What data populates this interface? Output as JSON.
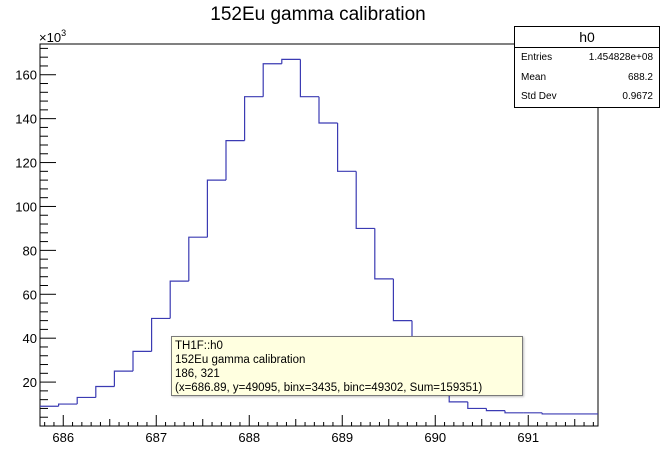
{
  "chart_data": {
    "type": "histogram",
    "title": "152Eu gamma calibration",
    "y_multiplier": "×10",
    "y_multiplier_exp": "3",
    "xlim": [
      685.75,
      691.75
    ],
    "ylim": [
      0,
      174
    ],
    "x_ticks": [
      686,
      687,
      688,
      689,
      690,
      691
    ],
    "y_ticks": [
      20,
      40,
      60,
      80,
      100,
      120,
      140,
      160
    ],
    "bin_edges": [
      685.75,
      685.95,
      686.15,
      686.35,
      686.55,
      686.75,
      686.95,
      687.15,
      687.35,
      687.55,
      687.75,
      687.95,
      688.15,
      688.35,
      688.55,
      688.75,
      688.95,
      689.15,
      689.35,
      689.55,
      689.75,
      689.95,
      690.15,
      690.35,
      690.55,
      690.75,
      690.95,
      691.15,
      691.75
    ],
    "values": [
      9,
      10,
      13,
      18,
      25,
      34,
      49,
      66,
      86,
      112,
      130,
      150,
      165,
      167,
      150,
      138,
      116,
      90,
      67,
      48,
      30,
      19,
      11,
      8,
      7,
      6,
      6,
      5.5
    ]
  },
  "stats_box": {
    "name": "h0",
    "rows": [
      {
        "label": "Entries",
        "value": "1.454828e+08"
      },
      {
        "label": "Mean",
        "value": "688.2"
      },
      {
        "label": "Std Dev",
        "value": "0.9672"
      }
    ]
  },
  "tooltip": {
    "line1": "TH1F::h0",
    "line2": "152Eu gamma calibration",
    "line3": "186, 321",
    "line4": "(x=686.89, y=49095, binx=3435, binc=49302, Sum=159351)"
  },
  "colors": {
    "line": "#3b3bb3",
    "axis": "#000000"
  }
}
